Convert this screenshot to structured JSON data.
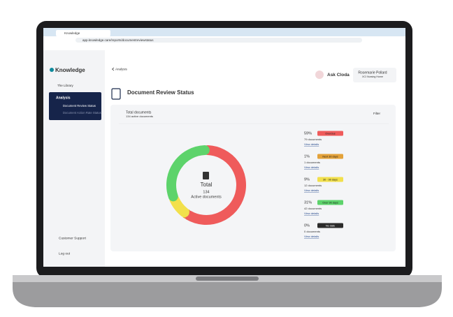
{
  "browser": {
    "tab_title": "Knowledge",
    "url": "app.knowledge.care/reports/documentreviewstatus"
  },
  "sidebar": {
    "logo": "Knowledge",
    "items": [
      "The Library",
      "Analysis"
    ],
    "subitems": [
      "Document Review Status",
      "Document Action Rate Status"
    ],
    "footer": [
      "Customer Support",
      "Log out"
    ]
  },
  "header": {
    "breadcrumb": "Analysis",
    "assistant": "Ask Cloda",
    "user_name": "Rosemarie Pollard",
    "user_org": "XCI Nursing Home"
  },
  "page_title": "Document Review Status",
  "card": {
    "title": "Total documents",
    "subtitle": "134 active documents",
    "filter": "Filter"
  },
  "chart_data": {
    "type": "donut",
    "center_title": "Total",
    "center_value": 134,
    "center_label": "Active documents",
    "categories": [
      "Overdue",
      "Next 30 days",
      "30 - 90 days",
      "Over 90 days",
      "No date"
    ],
    "values": [
      59,
      1,
      9,
      31,
      0
    ],
    "value_labels": [
      "59%",
      "1%",
      "9%",
      "31%",
      "0%"
    ],
    "colors": [
      "#ef5b5b",
      "#e3a23a",
      "#f2e04c",
      "#5dd36b",
      "#2b2b2b"
    ],
    "details": [
      "79 documents",
      "1 documents",
      "12 documents",
      "42 documents",
      "0 documents"
    ],
    "links": [
      "View details",
      "View details",
      "View details",
      "View details",
      "View details"
    ]
  }
}
